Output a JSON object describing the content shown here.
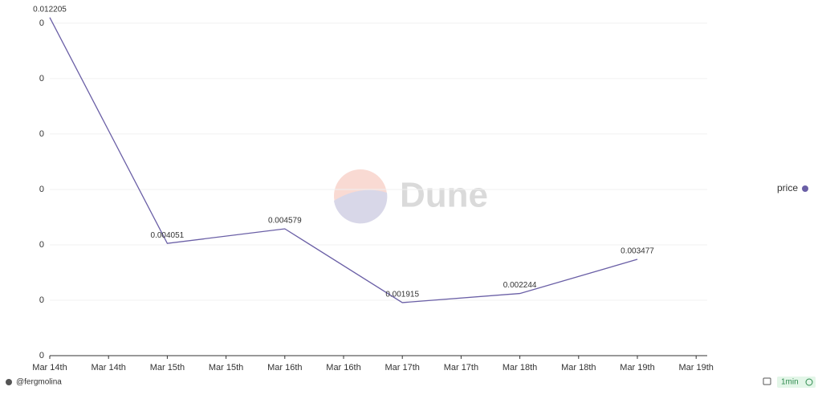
{
  "chart_data": {
    "type": "line",
    "x": [
      "Mar 14th",
      "Mar 15th",
      "Mar 16th",
      "Mar 17th",
      "Mar 18th",
      "Mar 19th"
    ],
    "xticks": [
      "Mar 14th",
      "Mar 14th",
      "Mar 15th",
      "Mar 15th",
      "Mar 16th",
      "Mar 16th",
      "Mar 17th",
      "Mar 17th",
      "Mar 18th",
      "Mar 18th",
      "Mar 19th",
      "Mar 19th"
    ],
    "series": [
      {
        "name": "price",
        "color": "#6a5fa6",
        "values": [
          0.012205,
          0.004051,
          0.004579,
          0.001915,
          0.002244,
          0.003477
        ]
      }
    ],
    "ylim": [
      0,
      0.0122
    ],
    "yticks": [
      0,
      {
        "value": 0.002,
        "label": "0"
      },
      {
        "value": 0.004,
        "label": "0"
      },
      {
        "value": 0.006,
        "label": "0"
      },
      {
        "value": 0.008,
        "label": "0"
      },
      {
        "value": 0.01,
        "label": "0"
      },
      {
        "value": 0.012,
        "label": "0"
      }
    ],
    "grid": true,
    "legend": "right"
  },
  "watermark": "Dune",
  "footer": {
    "author": "@fergmolina",
    "refresh": "1min"
  }
}
